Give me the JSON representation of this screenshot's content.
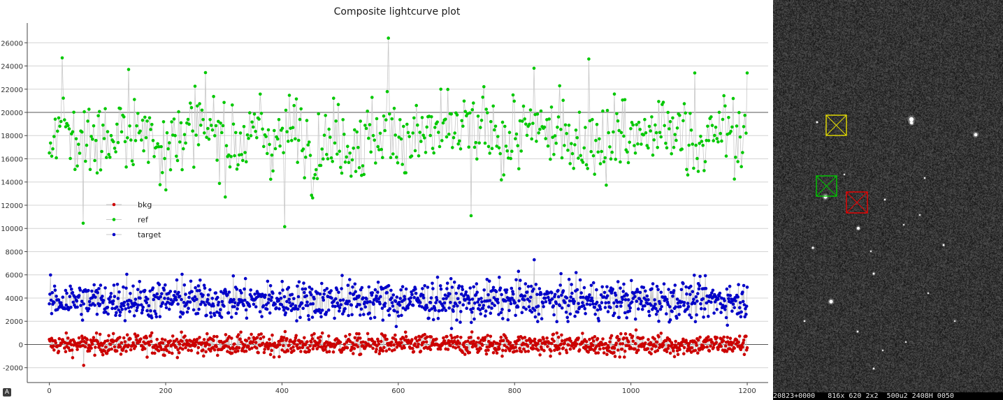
{
  "chart_data": {
    "type": "scatter",
    "title": "Composite lightcurve plot",
    "xlabel": "",
    "ylabel": "",
    "xlim": [
      -38,
      1236
    ],
    "ylim": [
      -3280,
      27700
    ],
    "x_ticks": [
      0,
      200,
      400,
      600,
      800,
      1000,
      1200
    ],
    "y_ticks": [
      -2000,
      0,
      2000,
      4000,
      6000,
      8000,
      10000,
      12000,
      14000,
      16000,
      18000,
      20000,
      22000,
      24000,
      26000
    ],
    "reference_lines": [
      0,
      20000
    ],
    "legend_position": "left-middle",
    "series": [
      {
        "name": "bkg",
        "color": "#cc0000",
        "n_points": 1200,
        "mean": 0,
        "spread": 430,
        "x_range": [
          0,
          1200
        ],
        "notable": [
          [
            59,
            -1800
          ],
          [
            1008,
            1250
          ],
          [
            1074,
            -1050
          ],
          [
            176,
            1000
          ]
        ]
      },
      {
        "name": "ref",
        "color": "#00c800",
        "n_points": 600,
        "mean": 18000,
        "spread": 2600,
        "x_range": [
          0,
          1200
        ],
        "notable": [
          [
            22,
            24700
          ],
          [
            58,
            10450
          ],
          [
            136,
            23700
          ],
          [
            403,
            10150
          ],
          [
            582,
            26400
          ],
          [
            724,
            11100
          ],
          [
            832,
            23800
          ],
          [
            925,
            24600
          ],
          [
            1107,
            23400
          ],
          [
            1198,
            23400
          ]
        ]
      },
      {
        "name": "target",
        "color": "#0000c8",
        "n_points": 1200,
        "mean": 3800,
        "spread": 800,
        "x_range": [
          0,
          1200
        ],
        "notable": [
          [
            833,
            7300
          ],
          [
            806,
            6300
          ],
          [
            228,
            6050
          ],
          [
            133,
            6050
          ],
          [
            503,
            5950
          ],
          [
            596,
            1550
          ],
          [
            725,
            1900
          ]
        ]
      }
    ]
  },
  "image_view": {
    "status_text": "20823+0000   816x 620 2x2  500u2 2408H 0050",
    "markers": [
      {
        "color": "#e8e000"
      },
      {
        "color": "#00cc00"
      },
      {
        "color": "#ee0000"
      }
    ]
  },
  "corner_button": {
    "label": "A"
  }
}
